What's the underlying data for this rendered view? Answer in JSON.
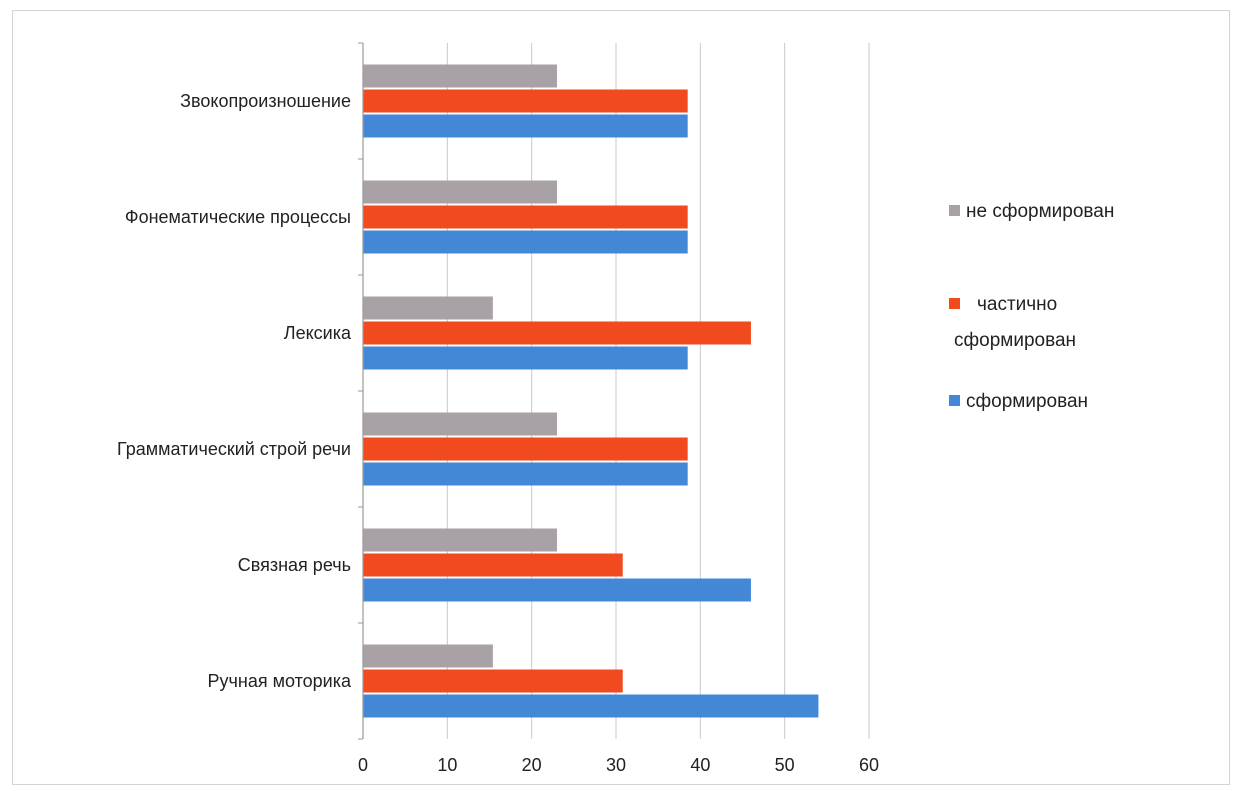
{
  "chart_data": {
    "type": "bar",
    "orientation": "horizontal",
    "categories": [
      "Звокопроизношение",
      "Фонематические процессы",
      "Лексика",
      "Грамматический строй речи",
      "Связная речь",
      "Ручная моторика"
    ],
    "series": [
      {
        "name": "не сформирован",
        "color": "#a8a2a6",
        "values": [
          23,
          23,
          15.4,
          23,
          23,
          15.4
        ]
      },
      {
        "name": "частично сформирован",
        "color": "#f04a1e",
        "values": [
          38.5,
          38.5,
          46,
          38.5,
          30.8,
          30.8
        ]
      },
      {
        "name": "сформирован",
        "color": "#4388d6",
        "values": [
          38.5,
          38.5,
          38.5,
          38.5,
          46,
          54
        ]
      }
    ],
    "x_ticks": [
      "0",
      "10",
      "20",
      "30",
      "40",
      "50",
      "60"
    ],
    "xlim": [
      0,
      60
    ],
    "grid": true,
    "legend": {
      "placement": "right",
      "entries": [
        "не сформирован",
        "частично сформирован",
        "сформирован"
      ],
      "lines": [
        [
          "не сформирован"
        ],
        [
          "частично",
          "сформирован"
        ],
        [
          "сформирован"
        ]
      ]
    },
    "title": "",
    "xlabel": "",
    "ylabel": ""
  }
}
